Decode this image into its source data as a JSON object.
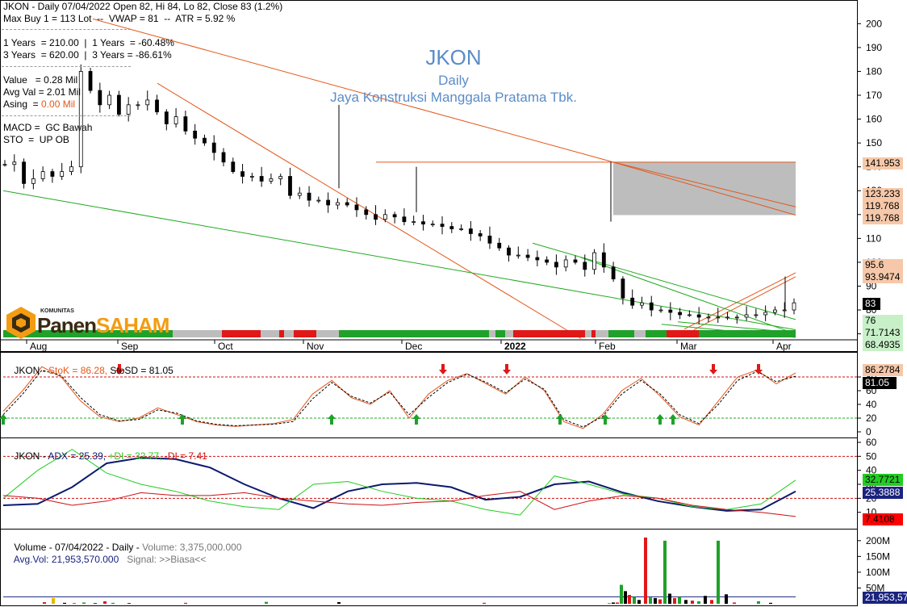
{
  "info": {
    "line1": "JKON - Daily 07/04/2022 Open 82, Hi 84, Lo 82, Close 83 (1.2%)",
    "line2": "Max Buy 1 = 113 Lot  --  VWAP = 81  --  ATR = 5.92 %",
    "line3": "1 Years  = 210.00  |  1 Years  = -60.48%",
    "line4": "3 Years  = 620.00  |  3 Years = -86.61%",
    "line5": "Value   = 0.28 Mil",
    "line6": "Avg Val = 2.01 Mil",
    "asing_label": "Asing  = ",
    "asing_value": "0.00 Mil",
    "line8": "MACD =  GC Bawah",
    "line9": "STO  =  UP OB"
  },
  "watermark": {
    "ticker": "JKON",
    "period": "Daily",
    "company": "Jaya Konstruksi Manggala Pratama Tbk."
  },
  "logo": {
    "top": "KOMUNITAS",
    "part1": "Panen",
    "part2": "SAHAM"
  },
  "price_axis": [
    "200",
    "190",
    "180",
    "170",
    "160",
    "150",
    "140",
    "130",
    "120",
    "110",
    "100",
    "90",
    "80",
    "70"
  ],
  "price_tags": {
    "t1": "141.953",
    "t2": "123.233",
    "t3": "119.768",
    "t4": "119.768",
    "t5": "95.6",
    "t6": "93.9474",
    "t7": "83",
    "t8": "76",
    "t9": "71.7143",
    "t10": "68.4935"
  },
  "date_labels": [
    "Aug",
    "Sep",
    "Oct",
    "Nov",
    "Dec",
    "2022",
    "Feb",
    "Mar",
    "Apr"
  ],
  "stoch": {
    "title_prefix": "JKON - ",
    "k_label": "StoK = 86.28,",
    "d_label": " StoSD = 81.05",
    "axis": [
      "80",
      "60",
      "40",
      "20",
      "0"
    ],
    "tag_k": "86.2784",
    "tag_d": "81.05"
  },
  "adx": {
    "title_prefix": "JKON - ",
    "adx_label": "ADX = 25.39,",
    "pdi_label": " +DI = 32.77,",
    "mdi_label": " -DI = 7.41",
    "axis": [
      "60",
      "50",
      "40",
      "30",
      "20",
      "10"
    ],
    "tag_pdi": "32.7721",
    "tag_adx": "25.3888",
    "tag_mdi": "7.4108"
  },
  "volume": {
    "title_a": "Volume - 07/04/2022 - Daily - ",
    "title_b": "Volume: 3,375,000.000",
    "avg_a": "Avg.Vol: 21,953,570.000",
    "avg_b": "   Signal: >>Biasa<<",
    "axis": [
      "200M",
      "150M",
      "100M",
      "50M"
    ],
    "tag": "21,953,57"
  },
  "colors": {
    "up": "#ffffff",
    "down": "#000000",
    "stoK": "#e4571b",
    "stoD": "#000000",
    "adx": "#0b1a6e",
    "pdi": "#22cc22",
    "mdi": "#cc1111",
    "trend": "#e4571b",
    "support": "#22aa22",
    "resistance_box": "#bdbdbd",
    "tag_orange": "#f6c8a9",
    "tag_green": "#c8f0c8",
    "tag_navy": "#1a237e",
    "tag_red": "#ff0000"
  },
  "chart_data": [
    {
      "type": "candlestick",
      "title": "JKON",
      "subtitle": "Daily",
      "ylim": [
        68,
        204
      ],
      "x_labels": [
        "Aug",
        "Sep",
        "Oct",
        "Nov",
        "Dec",
        "2022",
        "Feb",
        "Mar",
        "Apr"
      ],
      "last": {
        "date": "07/04/2022",
        "open": 82,
        "high": 84,
        "low": 82,
        "close": 83
      },
      "close_path": [
        {
          "month": "Aug",
          "close": [
            141,
            142,
            133,
            135,
            138,
            136,
            138,
            140,
            180,
            172,
            166
          ]
        },
        {
          "month": "Sep",
          "close": [
            170,
            162,
            166,
            166,
            168,
            163,
            158,
            161,
            155,
            152,
            150
          ]
        },
        {
          "month": "Oct",
          "close": [
            146,
            142,
            138,
            136,
            136,
            134,
            135,
            136,
            128,
            129,
            126
          ]
        },
        {
          "month": "Nov",
          "close": [
            126,
            124,
            125,
            124,
            122,
            120,
            118,
            120,
            119,
            117,
            117
          ]
        },
        {
          "month": "Dec",
          "close": [
            116,
            116,
            115,
            114,
            114,
            112,
            111,
            108,
            106,
            103,
            103
          ]
        },
        {
          "month": "Jan",
          "close": [
            102,
            101,
            100,
            98,
            101,
            100,
            97,
            104,
            98,
            93
          ]
        },
        {
          "month": "Feb",
          "close": [
            85,
            82,
            83,
            80,
            80,
            79,
            78,
            78,
            77
          ]
        },
        {
          "month": "Mar",
          "close": [
            77,
            77,
            77,
            77,
            78,
            78,
            79,
            80,
            80,
            83
          ]
        }
      ]
    },
    {
      "type": "line",
      "title": "StoK / StoSD",
      "ylim": [
        0,
        100
      ],
      "series": [
        {
          "name": "StoK",
          "values": [
            30,
            60,
            95,
            80,
            45,
            22,
            15,
            20,
            35,
            25,
            15,
            10,
            8,
            10,
            12,
            18,
            55,
            75,
            50,
            40,
            60,
            20,
            55,
            75,
            85,
            70,
            55,
            80,
            60,
            15,
            5,
            25,
            60,
            78,
            52,
            22,
            10,
            45,
            80,
            90,
            70,
            86
          ]
        },
        {
          "name": "StoSD",
          "values": [
            25,
            55,
            90,
            82,
            50,
            25,
            16,
            18,
            32,
            27,
            16,
            11,
            9,
            10,
            11,
            15,
            48,
            72,
            52,
            42,
            58,
            25,
            50,
            72,
            84,
            72,
            57,
            77,
            62,
            18,
            7,
            22,
            55,
            75,
            55,
            25,
            12,
            40,
            75,
            88,
            73,
            81
          ]
        }
      ],
      "levels": [
        80,
        20
      ]
    },
    {
      "type": "line",
      "title": "ADX",
      "ylim": [
        0,
        60
      ],
      "series": [
        {
          "name": "ADX",
          "values": [
            15,
            16,
            28,
            45,
            49,
            48,
            42,
            30,
            20,
            13,
            25,
            30,
            31,
            28,
            19,
            21,
            30,
            32,
            24,
            18,
            14,
            11,
            12,
            25
          ]
        },
        {
          "name": "+DI",
          "values": [
            20,
            40,
            55,
            38,
            30,
            25,
            18,
            14,
            12,
            30,
            32,
            25,
            20,
            18,
            12,
            8,
            36,
            30,
            23,
            20,
            14,
            12,
            16,
            33
          ]
        },
        {
          "name": "-DI",
          "values": [
            22,
            20,
            15,
            18,
            24,
            22,
            22,
            24,
            20,
            18,
            16,
            15,
            17,
            18,
            22,
            25,
            12,
            18,
            22,
            20,
            15,
            12,
            10,
            7
          ]
        }
      ],
      "levels": [
        50,
        20
      ]
    },
    {
      "type": "bar",
      "title": "Volume",
      "ylim": [
        0,
        220000000
      ],
      "signal": ">>Biasa<<",
      "values_millions": [
        5,
        18,
        3,
        2,
        4,
        2,
        8,
        3,
        2,
        3,
        6,
        5,
        3,
        2,
        4,
        4,
        60,
        40,
        28,
        22,
        12,
        210,
        20,
        18,
        14,
        200,
        32,
        18,
        22,
        12,
        10,
        8,
        25,
        12,
        200,
        30,
        4,
        8,
        3
      ]
    }
  ]
}
